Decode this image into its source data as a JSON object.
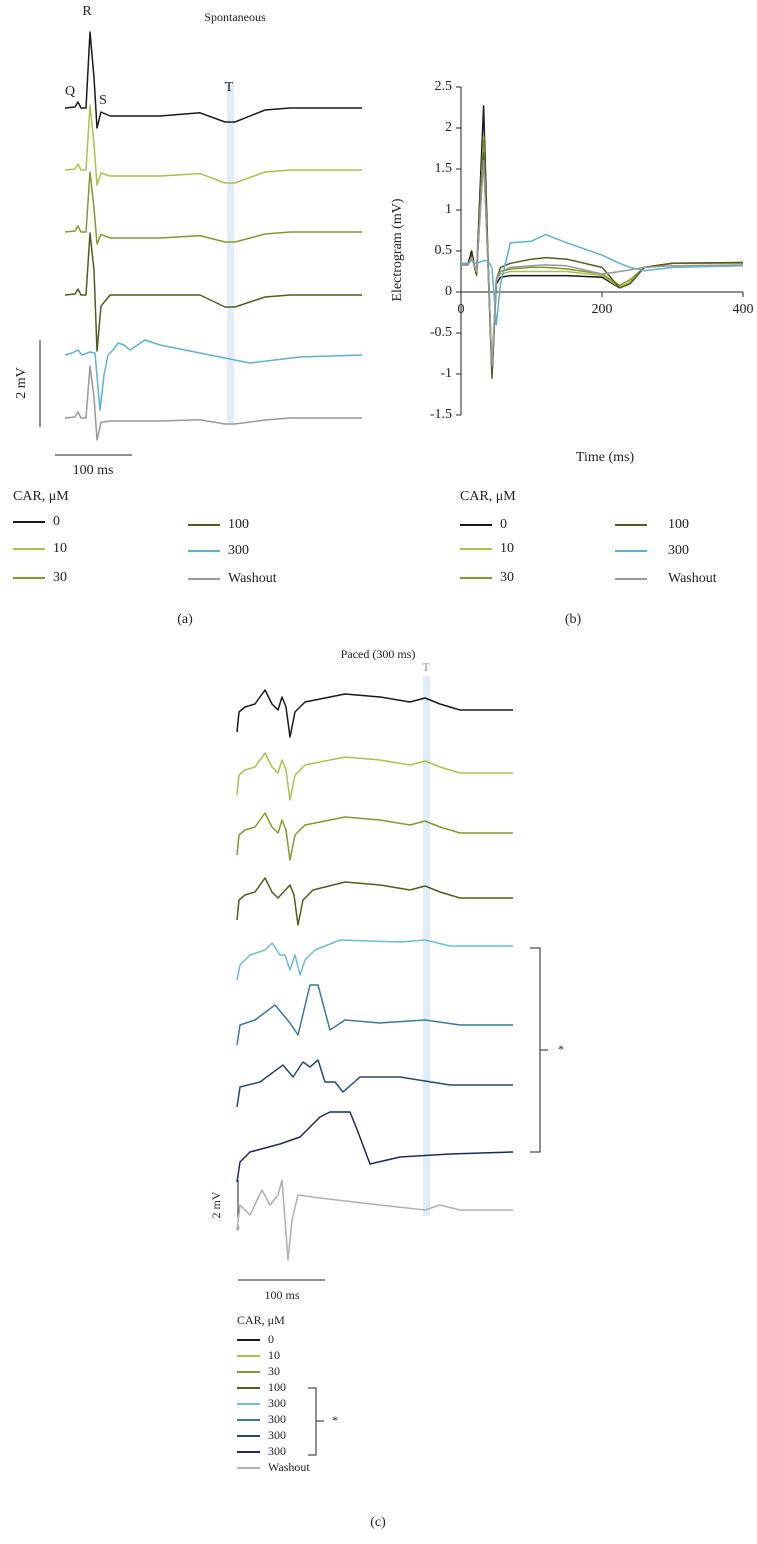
{
  "panel_a": {
    "title": "Spontaneous",
    "wave_labels": {
      "Q": "Q",
      "R": "R",
      "S": "S",
      "T": "T"
    },
    "scale_y": "2 mV",
    "scale_x": "100 ms",
    "legend_title": "CAR, μM",
    "legend": [
      {
        "name": "0",
        "color": "#1a1a1a"
      },
      {
        "name": "10",
        "color": "#a8c34a"
      },
      {
        "name": "30",
        "color": "#7f9b2e"
      },
      {
        "name": "100",
        "color": "#4f5e1c"
      },
      {
        "name": "300",
        "color": "#5ab4cf"
      },
      {
        "name": "Washout",
        "color": "#999999"
      }
    ],
    "caption": "(a)"
  },
  "chart_data": {
    "type": "line",
    "y_label": "Electrogram (mV)",
    "x_label": "Time (ms)",
    "legend_title": "CAR, μM",
    "caption": "(b)",
    "x": [
      0,
      10,
      15,
      22,
      32,
      38,
      44,
      50,
      56,
      70,
      100,
      120,
      150,
      200,
      225,
      240,
      260,
      300,
      400
    ],
    "series": [
      {
        "name": "0",
        "color": "#1a1a1a",
        "values": [
          0.35,
          0.35,
          0.5,
          0.2,
          2.27,
          0.5,
          -1.0,
          0.1,
          0.18,
          0.2,
          0.2,
          0.2,
          0.2,
          0.18,
          0.05,
          0.12,
          0.3,
          0.35,
          0.35
        ]
      },
      {
        "name": "10",
        "color": "#a8c34a",
        "values": [
          0.33,
          0.33,
          0.45,
          0.2,
          1.9,
          0.4,
          -0.95,
          0.15,
          0.22,
          0.25,
          0.25,
          0.25,
          0.25,
          0.2,
          0.06,
          0.12,
          0.3,
          0.35,
          0.35
        ]
      },
      {
        "name": "30",
        "color": "#7f9b2e",
        "values": [
          0.33,
          0.33,
          0.45,
          0.2,
          1.85,
          0.4,
          -1.0,
          0.15,
          0.25,
          0.28,
          0.3,
          0.3,
          0.28,
          0.22,
          0.08,
          0.15,
          0.3,
          0.35,
          0.36
        ]
      },
      {
        "name": "100",
        "color": "#4f5e1c",
        "values": [
          0.33,
          0.33,
          0.45,
          0.22,
          1.7,
          0.4,
          -1.05,
          0.15,
          0.3,
          0.35,
          0.4,
          0.42,
          0.4,
          0.3,
          0.05,
          0.1,
          0.3,
          0.35,
          0.36
        ]
      },
      {
        "name": "300",
        "color": "#5ab4cf",
        "values": [
          0.35,
          0.35,
          0.38,
          0.35,
          0.38,
          0.38,
          0.3,
          -0.4,
          0.1,
          0.6,
          0.62,
          0.7,
          0.6,
          0.45,
          0.35,
          0.3,
          0.26,
          0.3,
          0.32
        ]
      },
      {
        "name": "Washout",
        "color": "#999999",
        "values": [
          0.33,
          0.33,
          0.42,
          0.25,
          1.6,
          0.4,
          -0.9,
          0.15,
          0.25,
          0.3,
          0.32,
          0.33,
          0.32,
          0.22,
          0.25,
          0.27,
          0.3,
          0.32,
          0.33
        ]
      }
    ],
    "xlim": [
      0,
      400
    ],
    "xticks": [
      0,
      200,
      400
    ],
    "ylim": [
      -1.5,
      2.5
    ],
    "yticks": [
      2.5,
      2,
      1.5,
      1,
      0.5,
      0,
      -0.5,
      -1,
      -1.5
    ]
  },
  "panel_c": {
    "title": "Paced (300 ms)",
    "t_label": "T",
    "bracket_mark": "*",
    "scale_y": "2 mV",
    "scale_x": "100 ms",
    "legend_title": "CAR, μM",
    "legend": [
      {
        "name": "0",
        "color": "#1a1a1a"
      },
      {
        "name": "10",
        "color": "#a8c34a"
      },
      {
        "name": "30",
        "color": "#7f9b2e"
      },
      {
        "name": "100",
        "color": "#4f5e1c"
      },
      {
        "name": "300",
        "color": "#6bbcd6"
      },
      {
        "name": "300",
        "color": "#3a7a99"
      },
      {
        "name": "300",
        "color": "#274a66"
      },
      {
        "name": "300",
        "color": "#1f2a5a"
      },
      {
        "name": "Washout",
        "color": "#b0b0b0"
      }
    ],
    "legend_bracket_mark": "*",
    "caption": "(c)"
  }
}
